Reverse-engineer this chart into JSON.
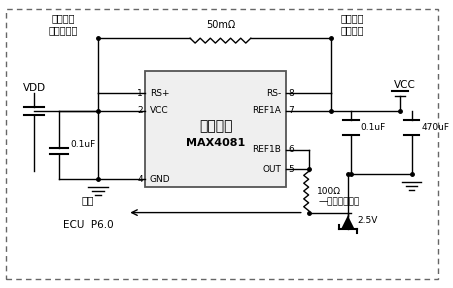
{
  "bg_color": "#ffffff",
  "border_color": "#666666",
  "ic_label1": "电流采集",
  "ic_label2": "MAX4081",
  "text_vdd": "VDD",
  "text_vcc": "VCC",
  "text_cap1": "0.1uF",
  "text_cap2": "0.1uF",
  "text_cap3": "470uF",
  "text_res1": "50mΩ",
  "text_res2": "100Ω",
  "text_ref": "2.5V",
  "text_top_left1": "电池组包",
  "text_top_left2": "输出开关负",
  "text_top_right1": "电池组包",
  "text_top_right2": "输出保险",
  "text_bottom1": "连接",
  "text_bottom2": "ECU  P6.0",
  "text_arrow": "—模拟电流输出"
}
